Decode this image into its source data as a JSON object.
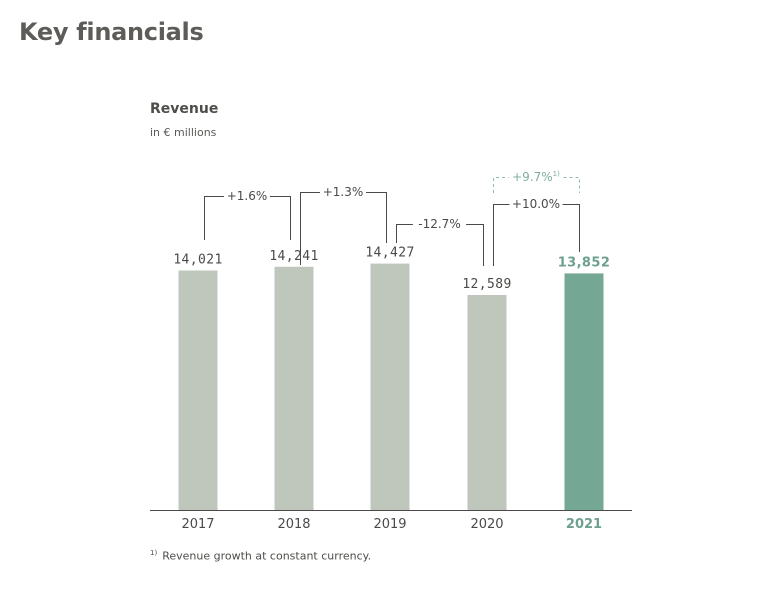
{
  "page": {
    "title": "Key financials"
  },
  "footnote": {
    "marker": "1)",
    "text": "Revenue growth at constant currency."
  },
  "chart_data": {
    "type": "bar",
    "title": "Revenue",
    "subtitle": "in € millions",
    "categories": [
      "2017",
      "2018",
      "2019",
      "2020",
      "2021"
    ],
    "values": [
      14021,
      14241,
      14427,
      12589,
      13852
    ],
    "value_labels": [
      "14,021",
      "14,241",
      "14,427",
      "12,589",
      "13,852"
    ],
    "highlight_index": 4,
    "ylim": [
      0,
      16000
    ],
    "grid": false,
    "colors": {
      "bar": "#bfc6bc",
      "highlight": "#74a895",
      "connector": "#4a4a48",
      "highlight_text": "#6e9f8f"
    },
    "growth_annotations": [
      {
        "from": 0,
        "to": 1,
        "label": "+1.6%"
      },
      {
        "from": 1,
        "to": 2,
        "label": "+1.3%"
      },
      {
        "from": 2,
        "to": 3,
        "label": "-12.7%"
      },
      {
        "from": 3,
        "to": 4,
        "label": "+10.0%"
      },
      {
        "from": 3,
        "to": 4,
        "label": "+9.7%",
        "footnote": "1)",
        "style": "dashed"
      }
    ]
  }
}
